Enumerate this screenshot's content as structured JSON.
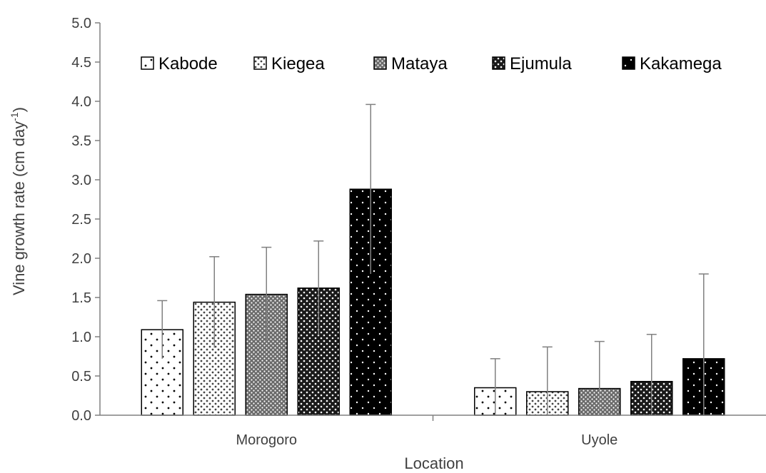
{
  "chart_data": {
    "type": "bar",
    "title": "",
    "xlabel": "Location",
    "ylabel": "Vine growth rate (cm day",
    "ylabel_superscript": "-1",
    "ylabel_close": ")",
    "ylim": [
      0,
      5.0
    ],
    "yticks": [
      "0.0",
      "0.5",
      "1.0",
      "1.5",
      "2.0",
      "2.5",
      "3.0",
      "3.5",
      "4.0",
      "4.5",
      "5.0"
    ],
    "categories": [
      "Morogoro",
      "Uyole"
    ],
    "legend_position": "top",
    "grid": false,
    "series": [
      {
        "name": "Kabode",
        "values": [
          1.09,
          0.35
        ],
        "errors": [
          0.37,
          0.37
        ],
        "pattern": "pat-kabode"
      },
      {
        "name": "Kiegea",
        "values": [
          1.44,
          0.3
        ],
        "errors": [
          0.58,
          0.57
        ],
        "pattern": "pat-kiegea"
      },
      {
        "name": "Mataya",
        "values": [
          1.54,
          0.34
        ],
        "errors": [
          0.6,
          0.6
        ],
        "pattern": "pat-mataya"
      },
      {
        "name": "Ejumula",
        "values": [
          1.62,
          0.43
        ],
        "errors": [
          0.6,
          0.6
        ],
        "pattern": "pat-ejumula"
      },
      {
        "name": "Kakamega",
        "values": [
          2.88,
          0.72
        ],
        "errors": [
          1.08,
          1.08
        ],
        "pattern": "pat-kakamega"
      }
    ]
  }
}
